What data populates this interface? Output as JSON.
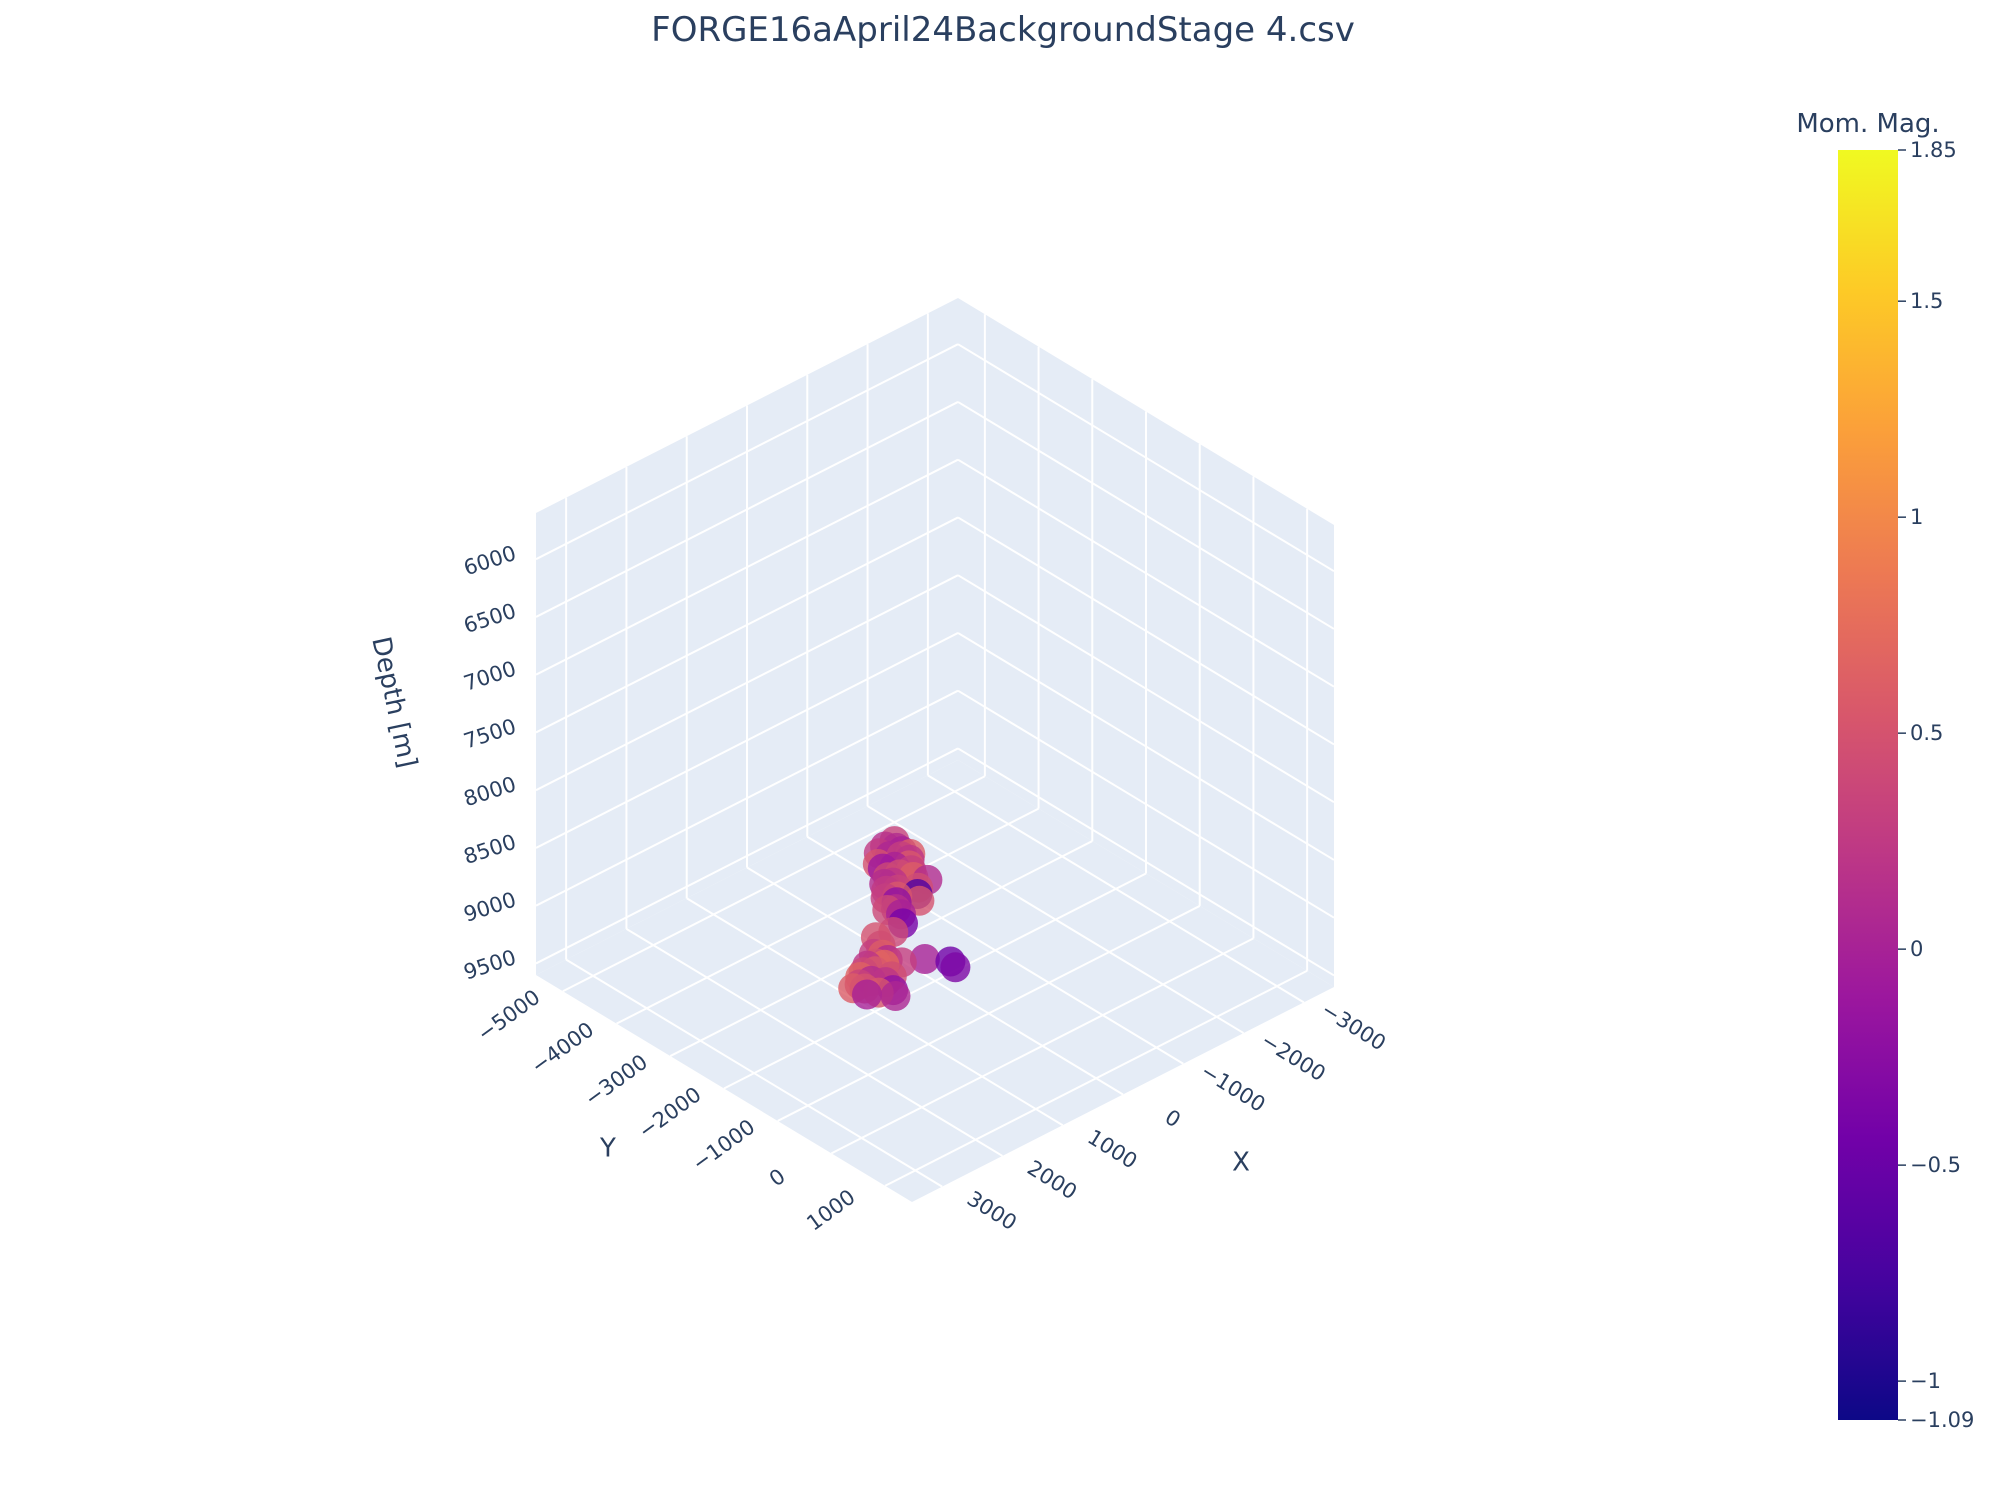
{
  "chart_data": {
    "type": "scatter3d",
    "title": "FORGE16aApril24BackgroundStage 4.csv",
    "xlabel": "X",
    "ylabel": "Y",
    "zlabel": "Depth [m]",
    "x_ticks": [
      "3000",
      "2000",
      "1000",
      "0",
      "−1000",
      "−2000",
      "−3000"
    ],
    "y_ticks": [
      "1000",
      "0",
      "−1000",
      "−2000",
      "−3000",
      "−4000",
      "−5000"
    ],
    "z_ticks": [
      "6000",
      "6500",
      "7000",
      "7500",
      "8000",
      "8500",
      "9000",
      "9500"
    ],
    "xlim": [
      -3500,
      3500
    ],
    "ylim": [
      -5500,
      1500
    ],
    "zlim": [
      5600,
      9600
    ],
    "z_reversed": true,
    "colorbar": {
      "title": "Mom. Mag.",
      "min": -1.09,
      "max": 1.85,
      "ticks": [
        "1.85",
        "1.5",
        "1",
        "0.5",
        "0",
        "−0.5",
        "−1",
        "−1.09"
      ],
      "colorscale": "plasma"
    },
    "points": [
      {
        "x": -1600,
        "y": -4550,
        "z": 9530,
        "m": 0.35
      },
      {
        "x": -1500,
        "y": -4400,
        "z": 9520,
        "m": 0.1
      },
      {
        "x": -1500,
        "y": -4300,
        "z": 9520,
        "m": 0.0
      },
      {
        "x": -1400,
        "y": -4200,
        "z": 9510,
        "m": 0.3
      },
      {
        "x": -1450,
        "y": -4100,
        "z": 9525,
        "m": 0.2
      },
      {
        "x": -1350,
        "y": -4000,
        "z": 9520,
        "m": 0.55
      },
      {
        "x": -1300,
        "y": -4300,
        "z": 9510,
        "m": 0.05
      },
      {
        "x": -1550,
        "y": -4200,
        "z": 9530,
        "m": 0.6
      },
      {
        "x": -1250,
        "y": -4450,
        "z": 9515,
        "m": 0.25
      },
      {
        "x": -1200,
        "y": -4100,
        "z": 9520,
        "m": 0.0
      },
      {
        "x": -1150,
        "y": -3950,
        "z": 9530,
        "m": 0.45
      },
      {
        "x": -1400,
        "y": -4500,
        "z": 9510,
        "m": 0.15
      },
      {
        "x": -1100,
        "y": -4300,
        "z": 9525,
        "m": 0.5
      },
      {
        "x": -1050,
        "y": -4150,
        "z": 9510,
        "m": -0.1
      },
      {
        "x": -1300,
        "y": -3900,
        "z": 9520,
        "m": 0.3
      },
      {
        "x": -1000,
        "y": -4000,
        "z": 9530,
        "m": 0.4
      },
      {
        "x": -950,
        "y": -3850,
        "z": 9520,
        "m": 0.2
      },
      {
        "x": -1200,
        "y": -3750,
        "z": 9510,
        "m": 0.6
      },
      {
        "x": -900,
        "y": -3700,
        "z": 9525,
        "m": 0.35
      },
      {
        "x": -850,
        "y": -3900,
        "z": 9520,
        "m": 0.1
      },
      {
        "x": -800,
        "y": -3600,
        "z": 9530,
        "m": 0.55
      },
      {
        "x": -750,
        "y": -3750,
        "z": 9510,
        "m": 0.25
      },
      {
        "x": -1100,
        "y": -3550,
        "z": 9520,
        "m": 0.45
      },
      {
        "x": -700,
        "y": -3500,
        "z": 9525,
        "m": -0.2
      },
      {
        "x": -650,
        "y": -3650,
        "z": 9520,
        "m": 0.3
      },
      {
        "x": -600,
        "y": -3400,
        "z": 9530,
        "m": 0.15
      },
      {
        "x": -900,
        "y": -3300,
        "z": 9510,
        "m": 0.5
      },
      {
        "x": -550,
        "y": -3250,
        "z": 9520,
        "m": 0.0
      },
      {
        "x": -500,
        "y": -3450,
        "z": 9525,
        "m": 0.4
      },
      {
        "x": -1000,
        "y": -3450,
        "z": 9520,
        "m": -0.7
      },
      {
        "x": -450,
        "y": -3100,
        "z": 9530,
        "m": -0.4
      },
      {
        "x": -1300,
        "y": -3600,
        "z": 9520,
        "m": 0.1
      },
      {
        "x": 100,
        "y": -2900,
        "z": 9520,
        "m": 0.45
      },
      {
        "x": 200,
        "y": -2750,
        "z": 9530,
        "m": 0.6
      },
      {
        "x": 300,
        "y": -2800,
        "z": 9510,
        "m": 0.3
      },
      {
        "x": 400,
        "y": -2650,
        "z": 9525,
        "m": 0.5
      },
      {
        "x": 350,
        "y": -2550,
        "z": 9520,
        "m": 0.7
      },
      {
        "x": 500,
        "y": -2700,
        "z": 9530,
        "m": 0.2
      },
      {
        "x": 550,
        "y": -2500,
        "z": 9510,
        "m": 0.55
      },
      {
        "x": 650,
        "y": -2600,
        "z": 9520,
        "m": 0.4
      },
      {
        "x": 700,
        "y": -2400,
        "z": 9525,
        "m": 0.1
      },
      {
        "x": 750,
        "y": -2550,
        "z": 9520,
        "m": 0.65
      },
      {
        "x": 850,
        "y": -2450,
        "z": 9530,
        "m": 0.35
      },
      {
        "x": 900,
        "y": -2300,
        "z": 9510,
        "m": 0.5
      },
      {
        "x": 950,
        "y": -2200,
        "z": 9520,
        "m": 0.0
      },
      {
        "x": 450,
        "y": -2300,
        "z": 9525,
        "m": 0.45
      },
      {
        "x": 600,
        "y": -2250,
        "z": 9520,
        "m": 0.2
      },
      {
        "x": 800,
        "y": -2150,
        "z": 9530,
        "m": 0.55
      },
      {
        "x": 250,
        "y": -2600,
        "z": 9520,
        "m": 0.1
      },
      {
        "x": 1000,
        "y": -2400,
        "z": 9510,
        "m": 0.6
      },
      {
        "x": 150,
        "y": -2450,
        "z": 9525,
        "m": 0.3
      },
      {
        "x": 650,
        "y": -2050,
        "z": 9520,
        "m": -0.2
      },
      {
        "x": 700,
        "y": -1950,
        "z": 9530,
        "m": 0.05
      },
      {
        "x": -100,
        "y": -2300,
        "z": 9520,
        "m": 0.0
      },
      {
        "x": -200,
        "y": -3000,
        "z": 9510,
        "m": 0.4
      },
      {
        "x": -300,
        "y": -2050,
        "z": 9525,
        "m": -0.45
      },
      {
        "x": -250,
        "y": -1900,
        "z": 9520,
        "m": -0.35
      },
      {
        "x": 0,
        "y": -3100,
        "z": 9530,
        "m": 0.5
      }
    ]
  }
}
